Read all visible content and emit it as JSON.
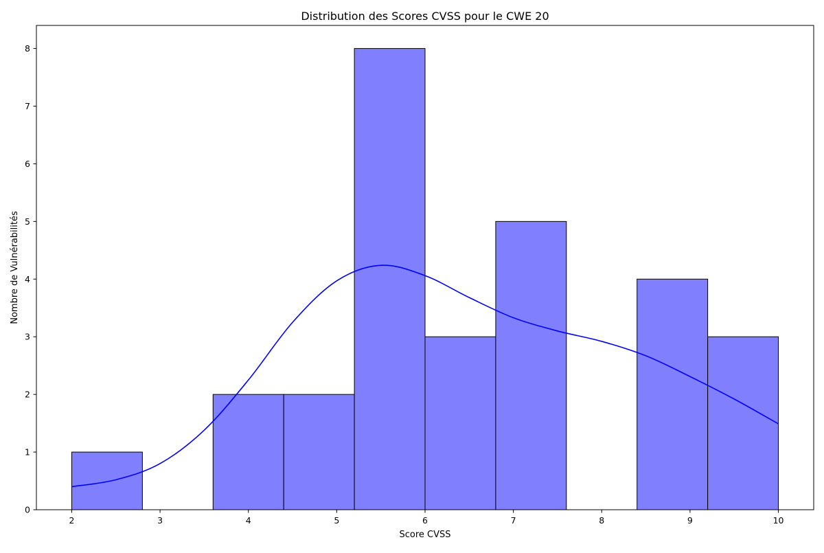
{
  "chart_data": {
    "type": "bar",
    "subtype": "histogram",
    "title": "Distribution des Scores CVSS pour le CWE 20",
    "xlabel": "Score CVSS",
    "ylabel": "Nombre de Vulnérabilités",
    "xlim": [
      1.6,
      10.4
    ],
    "ylim": [
      0,
      8.4
    ],
    "xticks": [
      2,
      3,
      4,
      5,
      6,
      7,
      8,
      9,
      10
    ],
    "yticks": [
      0,
      1,
      2,
      3,
      4,
      5,
      6,
      7,
      8
    ],
    "grid": false,
    "bins": [
      {
        "x0": 2.0,
        "x1": 2.8,
        "count": 1
      },
      {
        "x0": 2.8,
        "x1": 3.6,
        "count": 0
      },
      {
        "x0": 3.6,
        "x1": 4.4,
        "count": 2
      },
      {
        "x0": 4.4,
        "x1": 5.2,
        "count": 2
      },
      {
        "x0": 5.2,
        "x1": 6.0,
        "count": 8
      },
      {
        "x0": 6.0,
        "x1": 6.8,
        "count": 3
      },
      {
        "x0": 6.8,
        "x1": 7.6,
        "count": 5
      },
      {
        "x0": 7.6,
        "x1": 8.4,
        "count": 0
      },
      {
        "x0": 8.4,
        "x1": 9.2,
        "count": 4
      },
      {
        "x0": 9.2,
        "x1": 10.0,
        "count": 3
      }
    ],
    "kde": {
      "x": [
        2.0,
        2.5,
        3.0,
        3.5,
        4.0,
        4.5,
        5.0,
        5.5,
        6.0,
        6.5,
        7.0,
        7.5,
        8.0,
        8.5,
        9.0,
        9.5,
        10.0
      ],
      "y": [
        0.4,
        0.52,
        0.8,
        1.38,
        2.25,
        3.25,
        3.97,
        4.24,
        4.06,
        3.68,
        3.33,
        3.1,
        2.92,
        2.67,
        2.31,
        1.92,
        1.49
      ]
    },
    "colors": {
      "bar_fill": "#8080ff",
      "bar_edge": "#000000",
      "kde_line": "#0000ff",
      "axes": "#000000"
    }
  }
}
